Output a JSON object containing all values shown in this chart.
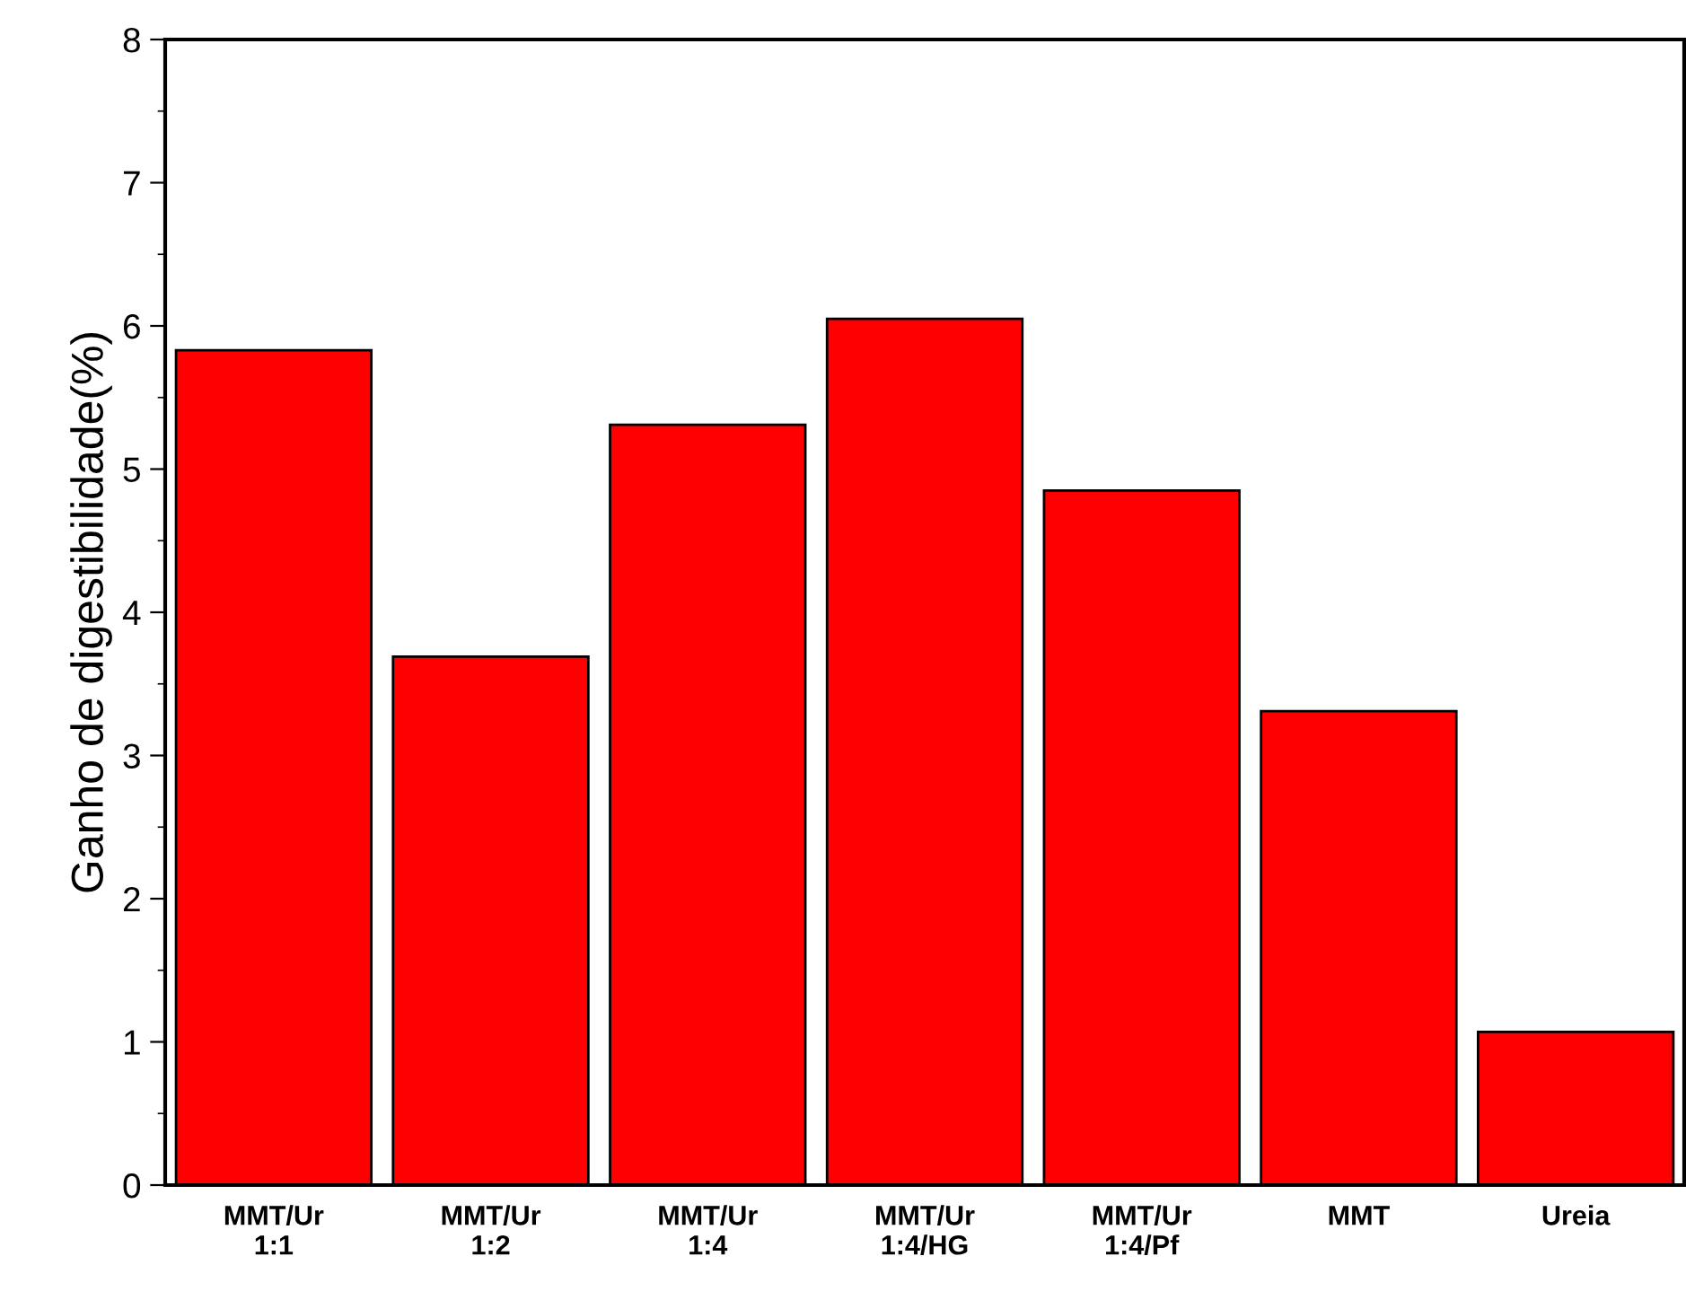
{
  "chart_data": {
    "type": "bar",
    "ylabel": "Ganho de digestibilidade(%)",
    "categories": [
      "MMT/Ur\n1:1",
      "MMT/Ur\n1:2",
      "MMT/Ur\n1:4",
      "MMT/Ur\n1:4/HG",
      "MMT/Ur\n1:4/Pf",
      "MMT",
      "Ureia"
    ],
    "values": [
      5.83,
      3.69,
      5.31,
      6.05,
      4.85,
      3.31,
      1.07
    ],
    "color": "#ff0000",
    "ylim": [
      0,
      8
    ],
    "yticks": [
      0,
      {
        "value": 0.5,
        "label": null
      },
      1,
      {
        "value": 1.5,
        "label": null
      },
      2,
      {
        "value": 2.5,
        "label": null
      },
      3,
      {
        "value": 3.5,
        "label": null
      },
      4,
      {
        "value": 4.5,
        "label": null
      },
      5,
      {
        "value": 5.5,
        "label": null
      },
      6,
      {
        "value": 6.5,
        "label": null
      },
      7,
      {
        "value": 7.5,
        "label": null
      },
      8
    ],
    "grid": false
  }
}
